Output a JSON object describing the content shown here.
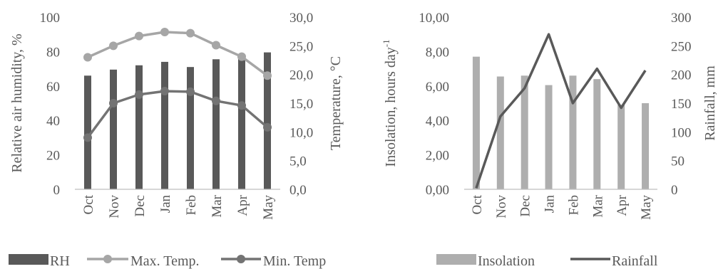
{
  "chart_data": [
    {
      "type": "bar+line",
      "categories": [
        "Oct",
        "Nov",
        "Dec",
        "Jan",
        "Feb",
        "Mar",
        "Apr",
        "May"
      ],
      "ylabel": "Relative air humidity, %",
      "y2label": "Temperature, °C",
      "ylim": [
        0,
        100
      ],
      "y2lim": [
        0,
        30
      ],
      "yticks": [
        "0",
        "20",
        "40",
        "60",
        "80",
        "100"
      ],
      "y2ticks": [
        "0,0",
        "5,0",
        "10,0",
        "15,0",
        "20,0",
        "25,0",
        "30,0"
      ],
      "series": [
        {
          "name": "RH",
          "kind": "bar",
          "axis": "left",
          "color": "#595959",
          "values": [
            66,
            69.5,
            72,
            74,
            71,
            75.5,
            78,
            79.5
          ]
        },
        {
          "name": "Max. Temp.",
          "kind": "line",
          "axis": "right",
          "color": "#a6a6a6",
          "values": [
            23.0,
            25.0,
            26.7,
            27.4,
            27.2,
            25.1,
            23.1,
            19.8
          ]
        },
        {
          "name": "Min. Temp",
          "kind": "line",
          "axis": "right",
          "color": "#737373",
          "values": [
            9.0,
            15.0,
            16.5,
            17.1,
            17.0,
            15.4,
            14.6,
            10.8
          ]
        }
      ],
      "legend_position": "bottom"
    },
    {
      "type": "bar+line",
      "categories": [
        "Oct",
        "Nov",
        "Dec",
        "Jan",
        "Feb",
        "Mar",
        "Apr",
        "May"
      ],
      "ylabel": "Insolation, hours day",
      "ylabel_sup": "-1",
      "y2label": "Rainfall, mm",
      "ylim": [
        0,
        10
      ],
      "y2lim": [
        0,
        300
      ],
      "yticks": [
        "0,00",
        "2,00",
        "4,00",
        "6,00",
        "8,00",
        "10,00"
      ],
      "y2ticks": [
        "0",
        "50",
        "100",
        "150",
        "200",
        "250",
        "300"
      ],
      "series": [
        {
          "name": "Insolation",
          "kind": "bar",
          "axis": "left",
          "color": "#aeaeae",
          "values": [
            7.7,
            6.55,
            6.6,
            6.05,
            6.6,
            6.4,
            4.9,
            5.0
          ]
        },
        {
          "name": "Rainfall",
          "kind": "line",
          "axis": "right",
          "color": "#595959",
          "values": [
            2,
            127,
            176,
            270,
            150,
            210,
            142,
            207
          ]
        }
      ],
      "legend_position": "bottom"
    }
  ]
}
